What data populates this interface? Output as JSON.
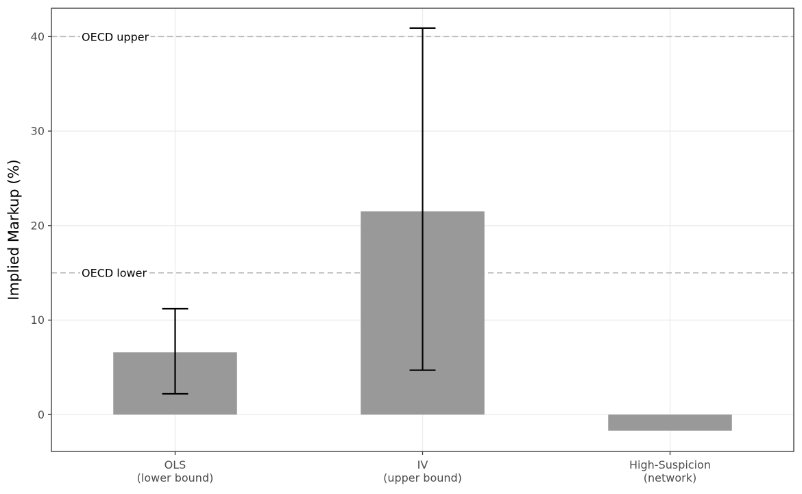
{
  "chart_data": {
    "type": "bar",
    "xlabel": "",
    "ylabel": "Implied Markup (%)",
    "ylim": [
      -3.9,
      43.0
    ],
    "yticks": [
      0,
      10,
      20,
      30,
      40
    ],
    "grid": true,
    "categories": [
      {
        "line1": "OLS",
        "line2": "(lower bound)"
      },
      {
        "line1": "IV",
        "line2": "(upper bound)"
      },
      {
        "line1": "High-Suspicion",
        "line2": "(network)"
      }
    ],
    "values": [
      6.6,
      21.5,
      -1.7
    ],
    "error_bars": [
      {
        "low": 2.2,
        "high": 11.2
      },
      {
        "low": 4.7,
        "high": 40.9
      },
      null
    ],
    "reference_lines": [
      {
        "value": 40,
        "label": "OECD upper"
      },
      {
        "value": 15,
        "label": "OECD lower"
      }
    ],
    "colors": {
      "bar": "#999999",
      "error_bar": "#000000",
      "reference_line": "#b3b3b3",
      "grid": "#ebebeb",
      "panel_border": "#333333"
    }
  }
}
